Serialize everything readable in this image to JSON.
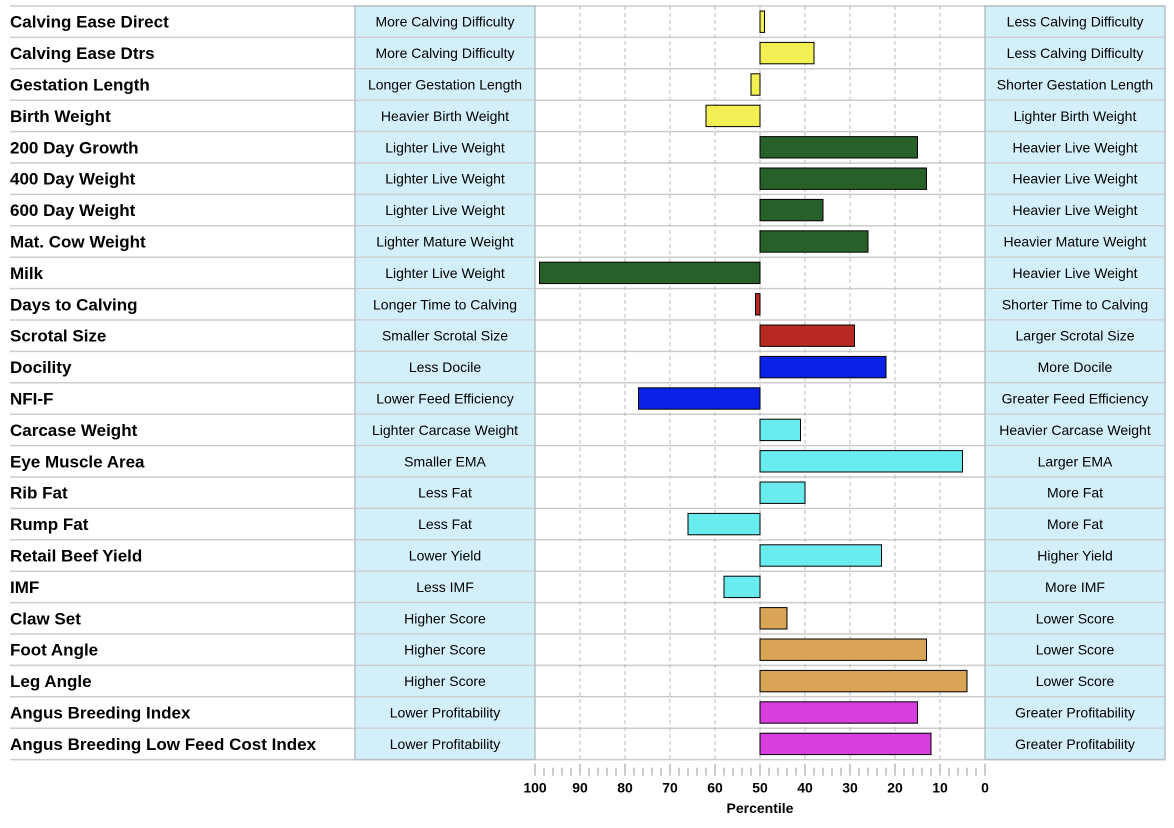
{
  "chart_data": {
    "type": "bar",
    "orientation": "horizontal",
    "xlabel": "Percentile",
    "xlim": [
      100,
      0
    ],
    "x_ticks": [
      100,
      90,
      80,
      70,
      60,
      50,
      40,
      30,
      20,
      10,
      0
    ],
    "baseline": 50,
    "grid": true,
    "traits": [
      {
        "name": "Calving Ease Direct",
        "left": "More Calving Difficulty",
        "right": "Less Calving Difficulty",
        "percentile": 49,
        "color": "#f2ef55"
      },
      {
        "name": "Calving Ease Dtrs",
        "left": "More Calving Difficulty",
        "right": "Less Calving Difficulty",
        "percentile": 38,
        "color": "#f2ef55"
      },
      {
        "name": "Gestation Length",
        "left": "Longer Gestation Length",
        "right": "Shorter Gestation Length",
        "percentile": 52,
        "color": "#f2ef55"
      },
      {
        "name": "Birth Weight",
        "left": "Heavier Birth Weight",
        "right": "Lighter Birth Weight",
        "percentile": 62,
        "color": "#f2ef55"
      },
      {
        "name": "200 Day Growth",
        "left": "Lighter Live Weight",
        "right": "Heavier Live Weight",
        "percentile": 15,
        "color": "#276129"
      },
      {
        "name": "400 Day Weight",
        "left": "Lighter Live Weight",
        "right": "Heavier Live Weight",
        "percentile": 13,
        "color": "#276129"
      },
      {
        "name": "600 Day Weight",
        "left": "Lighter Live Weight",
        "right": "Heavier Live Weight",
        "percentile": 36,
        "color": "#276129"
      },
      {
        "name": "Mat. Cow Weight",
        "left": "Lighter Mature Weight",
        "right": "Heavier Mature Weight",
        "percentile": 26,
        "color": "#276129"
      },
      {
        "name": "Milk",
        "left": "Lighter Live Weight",
        "right": "Heavier Live Weight",
        "percentile": 99,
        "color": "#276129"
      },
      {
        "name": "Days to Calving",
        "left": "Longer Time to Calving",
        "right": "Shorter Time to Calving",
        "percentile": 51,
        "color": "#b72a22"
      },
      {
        "name": "Scrotal Size",
        "left": "Smaller Scrotal Size",
        "right": "Larger Scrotal Size",
        "percentile": 29,
        "color": "#b72a22"
      },
      {
        "name": "Docility",
        "left": "Less Docile",
        "right": "More Docile",
        "percentile": 22,
        "color": "#0a22e6"
      },
      {
        "name": "NFI-F",
        "left": "Lower Feed Efficiency",
        "right": "Greater Feed Efficiency",
        "percentile": 77,
        "color": "#0a22e6"
      },
      {
        "name": "Carcase Weight",
        "left": "Lighter Carcase Weight",
        "right": "Heavier Carcase Weight",
        "percentile": 41,
        "color": "#6aecef"
      },
      {
        "name": "Eye Muscle Area",
        "left": "Smaller EMA",
        "right": "Larger EMA",
        "percentile": 5,
        "color": "#6aecef"
      },
      {
        "name": "Rib Fat",
        "left": "Less Fat",
        "right": "More Fat",
        "percentile": 40,
        "color": "#6aecef"
      },
      {
        "name": "Rump Fat",
        "left": "Less Fat",
        "right": "More Fat",
        "percentile": 66,
        "color": "#6aecef"
      },
      {
        "name": "Retail Beef Yield",
        "left": "Lower Yield",
        "right": "Higher Yield",
        "percentile": 23,
        "color": "#6aecef"
      },
      {
        "name": "IMF",
        "left": "Less IMF",
        "right": "More IMF",
        "percentile": 58,
        "color": "#6aecef"
      },
      {
        "name": "Claw Set",
        "left": "Higher Score",
        "right": "Lower Score",
        "percentile": 44,
        "color": "#d9a455"
      },
      {
        "name": "Foot Angle",
        "left": "Higher Score",
        "right": "Lower Score",
        "percentile": 13,
        "color": "#d9a455"
      },
      {
        "name": "Leg Angle",
        "left": "Higher Score",
        "right": "Lower Score",
        "percentile": 4,
        "color": "#d9a455"
      },
      {
        "name": "Angus Breeding Index",
        "left": "Lower Profitability",
        "right": "Greater Profitability",
        "percentile": 15,
        "color": "#d63ede"
      },
      {
        "name": "Angus Breeding Low Feed Cost Index",
        "left": "Lower Profitability",
        "right": "Greater Profitability",
        "percentile": 12,
        "color": "#d63ede"
      }
    ]
  },
  "colors": {
    "label_box": "#d3eff9",
    "label_box_border": "#b4c2c8",
    "row_line": "#cccccc",
    "grid": "#bdbdbd",
    "bar_stroke": "#000000"
  }
}
